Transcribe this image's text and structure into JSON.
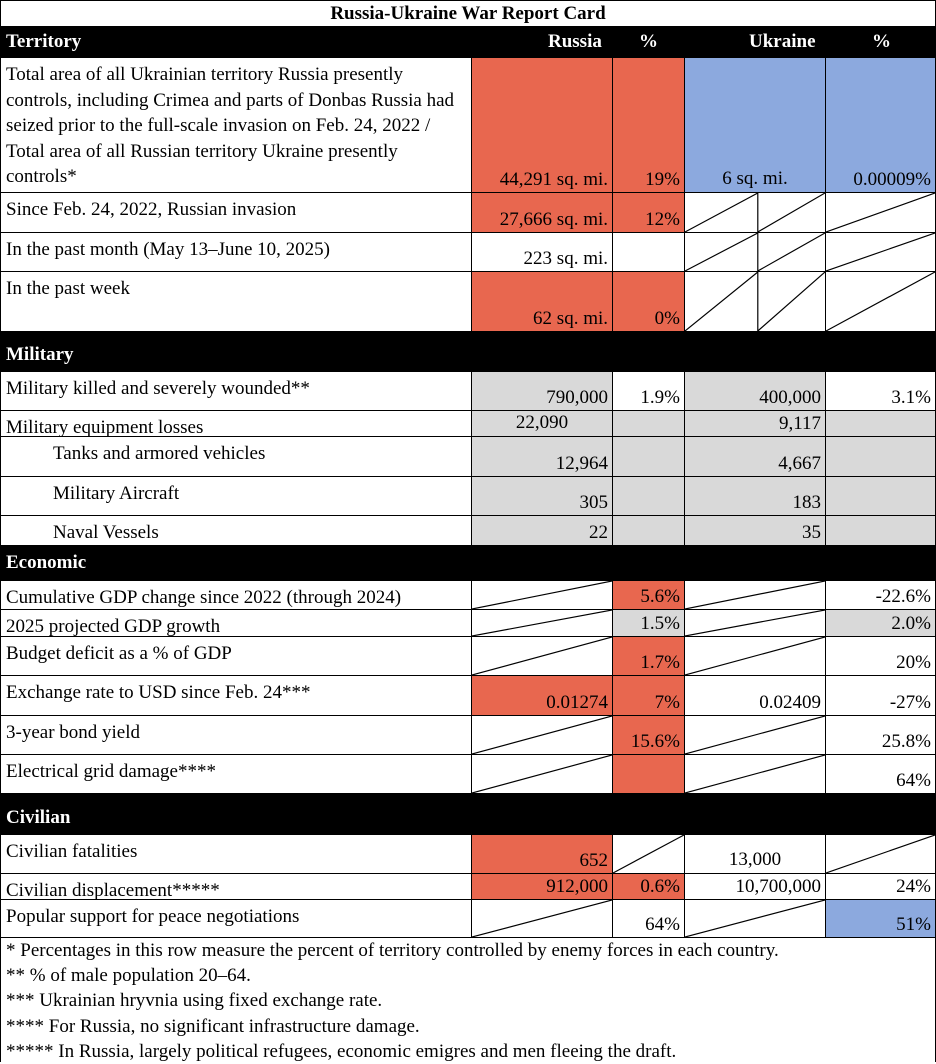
{
  "title": "Russia-Ukraine War Report Card",
  "header": {
    "label": "Territory",
    "russia": "Russia",
    "pct1": "%",
    "ukraine": "Ukraine",
    "pct2": "%"
  },
  "sections": [
    {
      "name": "Territory",
      "rows": []
    },
    {
      "name": "Military"
    },
    {
      "name": "Economic"
    },
    {
      "name": "Civilian"
    }
  ],
  "rows": [
    {
      "label": "Total area of all Ukrainian territory Russia presently controls, including Crimea and parts of Donbas Russia had seized prior to the full-scale invasion on Feb. 24, 2022 / Total area of all Russian territory Ukraine presently controls*",
      "cells": [
        {
          "text": "44,291  sq. mi.",
          "bg": "#e8674f"
        },
        {
          "text": "19%",
          "bg": "#e8674f"
        },
        {
          "text": "6  sq. mi.",
          "bg": "#8ca9de",
          "align": "center"
        },
        {
          "text": "0.00009%",
          "bg": "#8ca9de"
        }
      ]
    },
    {
      "label": "Since Feb. 24, 2022, Russian invasion",
      "cells": [
        {
          "text": "27,666  sq. mi.",
          "bg": "#e8674f"
        },
        {
          "text": "12%",
          "bg": "#e8674f"
        },
        {
          "diag": "double"
        },
        {
          "diag": true
        }
      ]
    },
    {
      "label": "In the past month (May 13–June 10, 2025)",
      "cells": [
        {
          "text": "223  sq. mi."
        },
        {
          "text": ""
        },
        {
          "diag": "double"
        },
        {
          "diag": true
        }
      ]
    },
    {
      "label": "In the past week",
      "cells": [
        {
          "text": "62  sq. mi.",
          "bg": "#e8674f"
        },
        {
          "text": "0%",
          "bg": "#e8674f"
        },
        {
          "diag": "double"
        },
        {
          "diag": true
        }
      ]
    },
    {
      "label": "Military killed and severely wounded**",
      "cells": [
        {
          "text": "790,000",
          "bg": "#d9d9d9"
        },
        {
          "text": "1.9%"
        },
        {
          "text": "400,000",
          "bg": "#d9d9d9"
        },
        {
          "text": "3.1%"
        }
      ]
    },
    {
      "label": "Military equipment losses",
      "cells": [
        {
          "text": "22,090",
          "bg": "#d9d9d9",
          "align": "center"
        },
        {
          "text": "",
          "bg": "#d9d9d9"
        },
        {
          "text": "9,117",
          "bg": "#d9d9d9"
        },
        {
          "text": "",
          "bg": "#d9d9d9"
        }
      ]
    },
    {
      "label": "Tanks and armored vehicles",
      "indent": true,
      "cells": [
        {
          "text": "12,964",
          "bg": "#d9d9d9"
        },
        {
          "text": "",
          "bg": "#d9d9d9"
        },
        {
          "text": "4,667",
          "bg": "#d9d9d9"
        },
        {
          "text": "",
          "bg": "#d9d9d9"
        }
      ]
    },
    {
      "label": "Military Aircraft",
      "indent": true,
      "cells": [
        {
          "text": "305",
          "bg": "#d9d9d9"
        },
        {
          "text": "",
          "bg": "#d9d9d9"
        },
        {
          "text": "183",
          "bg": "#d9d9d9"
        },
        {
          "text": "",
          "bg": "#d9d9d9"
        }
      ]
    },
    {
      "label": "Naval Vessels",
      "indent": true,
      "cells": [
        {
          "text": "22",
          "bg": "#d9d9d9"
        },
        {
          "text": "",
          "bg": "#d9d9d9"
        },
        {
          "text": "35",
          "bg": "#d9d9d9"
        },
        {
          "text": "",
          "bg": "#d9d9d9"
        }
      ]
    },
    {
      "label": "Cumulative GDP change since 2022 (through 2024)",
      "cells": [
        {
          "diag": true
        },
        {
          "text": "5.6%",
          "bg": "#e8674f"
        },
        {
          "diag": true
        },
        {
          "text": "-22.6%"
        }
      ]
    },
    {
      "label": "2025 projected GDP growth",
      "cells": [
        {
          "diag": true
        },
        {
          "text": "1.5%",
          "bg": "#d9d9d9"
        },
        {
          "diag": true
        },
        {
          "text": "2.0%",
          "bg": "#d9d9d9"
        }
      ]
    },
    {
      "label": "Budget deficit as a % of GDP",
      "cells": [
        {
          "diag": true
        },
        {
          "text": "1.7%",
          "bg": "#e8674f"
        },
        {
          "diag": true
        },
        {
          "text": "20%"
        }
      ]
    },
    {
      "label": "Exchange rate to USD since Feb. 24***",
      "cells": [
        {
          "text": "0.01274",
          "bg": "#e8674f"
        },
        {
          "text": "7%",
          "bg": "#e8674f"
        },
        {
          "text": "0.02409"
        },
        {
          "text": "-27%"
        }
      ]
    },
    {
      "label": "3-year bond yield",
      "cells": [
        {
          "diag": true
        },
        {
          "text": "15.6%",
          "bg": "#e8674f"
        },
        {
          "diag": true
        },
        {
          "text": "25.8%"
        }
      ]
    },
    {
      "label": "Electrical grid damage****",
      "cells": [
        {
          "diag": true
        },
        {
          "text": "",
          "bg": "#e8674f"
        },
        {
          "diag": true
        },
        {
          "text": "64%"
        }
      ]
    },
    {
      "label": "Civilian fatalities",
      "cells": [
        {
          "text": "652",
          "bg": "#e8674f"
        },
        {
          "diag": true
        },
        {
          "text": "13,000",
          "align": "center"
        },
        {
          "diag": true
        }
      ]
    },
    {
      "label": "Civilian displacement*****",
      "cells": [
        {
          "text": "912,000",
          "bg": "#e8674f"
        },
        {
          "text": "0.6%",
          "bg": "#e8674f"
        },
        {
          "text": "10,700,000"
        },
        {
          "text": "24%"
        }
      ]
    },
    {
      "label": "Popular support for peace negotiations",
      "cells": [
        {
          "diag": true
        },
        {
          "text": "64%"
        },
        {
          "diag": true
        },
        {
          "text": "51%",
          "bg": "#8ca9de"
        }
      ]
    }
  ],
  "footnotes": [
    "* Percentages in this row measure the percent of territory controlled by enemy forces in each country.",
    "** % of male population 20–64.",
    "*** Ukrainian hryvnia using fixed exchange rate.",
    "**** For Russia, no significant infrastructure damage.",
    "***** In Russia, largely political refugees, economic emigres and men fleeing the draft."
  ]
}
